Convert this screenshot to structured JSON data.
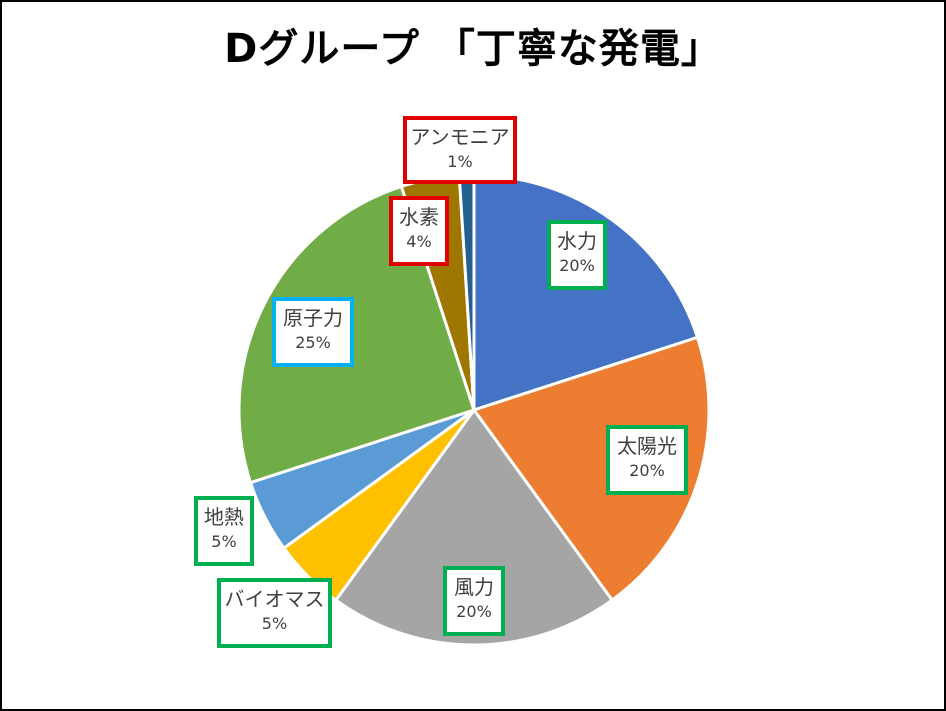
{
  "chart_data": {
    "type": "pie",
    "title": "Dグループ 「丁寧な発電」",
    "slices": [
      {
        "key": "hydro",
        "label": "水力",
        "pct_label": "20%",
        "value": 20,
        "color": "#4472C4",
        "box_color": "#00B050"
      },
      {
        "key": "solar",
        "label": "太陽光",
        "pct_label": "20%",
        "value": 20,
        "color": "#ED7D31",
        "box_color": "#00B050"
      },
      {
        "key": "wind",
        "label": "風力",
        "pct_label": "20%",
        "value": 20,
        "color": "#A5A5A5",
        "box_color": "#00B050"
      },
      {
        "key": "biomass",
        "label": "バイオマス",
        "pct_label": "5%",
        "value": 5,
        "color": "#FFC000",
        "box_color": "#00B050"
      },
      {
        "key": "geothermal",
        "label": "地熱",
        "pct_label": "5%",
        "value": 5,
        "color": "#5B9BD5",
        "box_color": "#00B050"
      },
      {
        "key": "nuclear",
        "label": "原子力",
        "pct_label": "25%",
        "value": 25,
        "color": "#70AD47",
        "box_color": "#00B0F0"
      },
      {
        "key": "hydrogen",
        "label": "水素",
        "pct_label": "4%",
        "value": 4,
        "color": "#9E7600",
        "box_color": "#E00000"
      },
      {
        "key": "ammonia",
        "label": "アンモニア",
        "pct_label": "1%",
        "value": 1,
        "color": "#255E91",
        "box_color": "#E00000"
      }
    ],
    "start_angle": "12 o'clock",
    "direction": "clockwise",
    "legend": "none"
  }
}
